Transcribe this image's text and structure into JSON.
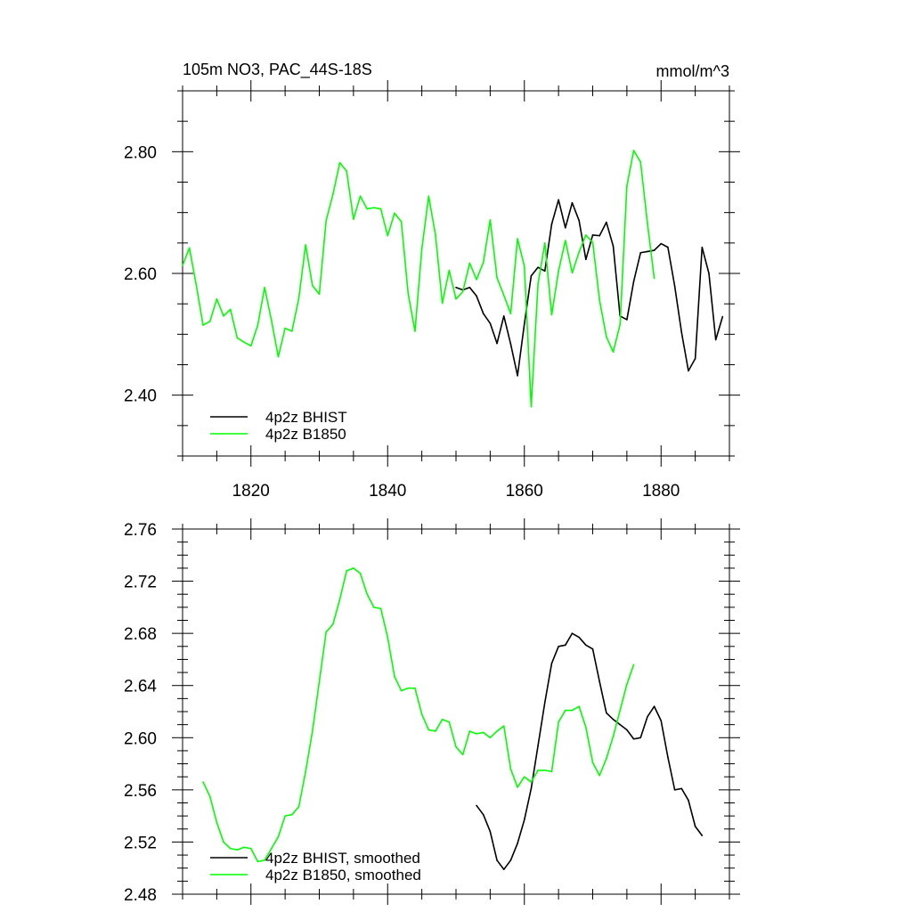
{
  "header": {
    "title": "105m NO3, PAC_44S-18S",
    "units": "mmol/m^3"
  },
  "chart_data": [
    {
      "type": "line",
      "title": "105m NO3, PAC_44S-18S",
      "units": "mmol/m^3",
      "xlim": [
        1810,
        1890
      ],
      "ylim": [
        2.3,
        2.9
      ],
      "x_ticks": [
        1820,
        1840,
        1860,
        1880
      ],
      "x_tick_labels": [
        "1820",
        "1840",
        "1860",
        "1880"
      ],
      "y_ticks": [
        2.4,
        2.6,
        2.8
      ],
      "y_tick_labels": [
        "2.40",
        "2.60",
        "2.80"
      ],
      "legend_placement": "lower-left",
      "grid": false,
      "series": [
        {
          "name": "4p2z BHIST",
          "color": "#000000",
          "x": [
            1850,
            1851,
            1852,
            1853,
            1854,
            1855,
            1856,
            1857,
            1858,
            1859,
            1860,
            1861,
            1862,
            1863,
            1864,
            1865,
            1866,
            1867,
            1868,
            1869,
            1870,
            1871,
            1872,
            1873,
            1874,
            1875,
            1876,
            1877,
            1878,
            1879,
            1880,
            1881,
            1882,
            1883,
            1884,
            1885,
            1886,
            1887,
            1888,
            1889
          ],
          "y": [
            2.577,
            2.573,
            2.577,
            2.563,
            2.534,
            2.518,
            2.485,
            2.53,
            2.484,
            2.432,
            2.517,
            2.596,
            2.61,
            2.604,
            2.681,
            2.721,
            2.675,
            2.716,
            2.687,
            2.623,
            2.663,
            2.662,
            2.684,
            2.645,
            2.53,
            2.524,
            2.587,
            2.634,
            2.636,
            2.638,
            2.649,
            2.643,
            2.579,
            2.503,
            2.44,
            2.46,
            2.643,
            2.6,
            2.491,
            2.529
          ]
        },
        {
          "name": "4p2z B1850",
          "color": "#00ff00",
          "x": [
            1810,
            1811,
            1812,
            1813,
            1814,
            1815,
            1816,
            1817,
            1818,
            1819,
            1820,
            1821,
            1822,
            1823,
            1824,
            1825,
            1826,
            1827,
            1828,
            1829,
            1830,
            1831,
            1832,
            1833,
            1834,
            1835,
            1836,
            1837,
            1838,
            1839,
            1840,
            1841,
            1842,
            1843,
            1844,
            1845,
            1846,
            1847,
            1848,
            1849,
            1850,
            1851,
            1852,
            1853,
            1854,
            1855,
            1856,
            1857,
            1858,
            1859,
            1860,
            1861,
            1862,
            1863,
            1864,
            1865,
            1866,
            1867,
            1868,
            1869,
            1870,
            1871,
            1872,
            1873,
            1874,
            1875,
            1876,
            1877,
            1878,
            1879
          ],
          "y": [
            2.613,
            2.642,
            2.581,
            2.515,
            2.521,
            2.558,
            2.53,
            2.541,
            2.494,
            2.487,
            2.481,
            2.515,
            2.577,
            2.523,
            2.463,
            2.51,
            2.505,
            2.559,
            2.647,
            2.58,
            2.566,
            2.687,
            2.73,
            2.782,
            2.768,
            2.689,
            2.727,
            2.706,
            2.708,
            2.706,
            2.662,
            2.699,
            2.685,
            2.567,
            2.505,
            2.64,
            2.727,
            2.663,
            2.551,
            2.605,
            2.558,
            2.57,
            2.617,
            2.59,
            2.618,
            2.688,
            2.593,
            2.564,
            2.534,
            2.657,
            2.612,
            2.381,
            2.583,
            2.65,
            2.532,
            2.604,
            2.654,
            2.601,
            2.635,
            2.663,
            2.651,
            2.556,
            2.496,
            2.471,
            2.516,
            2.744,
            2.802,
            2.783,
            2.683,
            2.592
          ]
        }
      ]
    },
    {
      "type": "line",
      "xlim": [
        1810,
        1890
      ],
      "ylim": [
        2.48,
        2.76
      ],
      "x_ticks": [
        1820,
        1840,
        1860,
        1880
      ],
      "y_ticks": [
        2.48,
        2.52,
        2.56,
        2.6,
        2.64,
        2.68,
        2.72,
        2.76
      ],
      "y_tick_labels": [
        "2.48",
        "2.52",
        "2.56",
        "2.60",
        "2.64",
        "2.68",
        "2.72",
        "2.76"
      ],
      "legend_placement": "lower-left",
      "grid": false,
      "series": [
        {
          "name": "4p2z BHIST, smoothed",
          "color": "#000000",
          "x": [
            1853,
            1854,
            1855,
            1856,
            1857,
            1858,
            1859,
            1860,
            1861,
            1862,
            1863,
            1864,
            1865,
            1866,
            1867,
            1868,
            1869,
            1870,
            1871,
            1872,
            1873,
            1874,
            1875,
            1876,
            1877,
            1878,
            1879,
            1880,
            1881,
            1882,
            1883,
            1884,
            1885,
            1886
          ],
          "y": [
            2.548,
            2.541,
            2.528,
            2.506,
            2.499,
            2.506,
            2.519,
            2.537,
            2.561,
            2.594,
            2.627,
            2.657,
            2.67,
            2.671,
            2.68,
            2.677,
            2.671,
            2.668,
            2.643,
            2.619,
            2.614,
            2.61,
            2.606,
            2.599,
            2.6,
            2.616,
            2.624,
            2.613,
            2.585,
            2.56,
            2.561,
            2.552,
            2.532,
            2.525
          ]
        },
        {
          "name": "4p2z B1850, smoothed",
          "color": "#00ff00",
          "x": [
            1813,
            1814,
            1815,
            1816,
            1817,
            1818,
            1819,
            1820,
            1821,
            1822,
            1823,
            1824,
            1825,
            1826,
            1827,
            1828,
            1829,
            1830,
            1831,
            1832,
            1833,
            1834,
            1835,
            1836,
            1837,
            1838,
            1839,
            1840,
            1841,
            1842,
            1843,
            1844,
            1845,
            1846,
            1847,
            1848,
            1849,
            1850,
            1851,
            1852,
            1853,
            1854,
            1855,
            1856,
            1857,
            1858,
            1859,
            1860,
            1861,
            1862,
            1863,
            1864,
            1865,
            1866,
            1867,
            1868,
            1869,
            1870,
            1871,
            1872,
            1873,
            1874,
            1875,
            1876
          ],
          "y": [
            2.566,
            2.555,
            2.535,
            2.52,
            2.515,
            2.514,
            2.516,
            2.515,
            2.505,
            2.506,
            2.515,
            2.524,
            2.54,
            2.541,
            2.547,
            2.574,
            2.605,
            2.643,
            2.681,
            2.687,
            2.706,
            2.728,
            2.73,
            2.726,
            2.71,
            2.7,
            2.699,
            2.677,
            2.647,
            2.636,
            2.638,
            2.638,
            2.618,
            2.606,
            2.605,
            2.614,
            2.612,
            2.593,
            2.587,
            2.605,
            2.603,
            2.604,
            2.6,
            2.605,
            2.609,
            2.576,
            2.562,
            2.57,
            2.566,
            2.575,
            2.575,
            2.574,
            2.612,
            2.621,
            2.621,
            2.624,
            2.608,
            2.581,
            2.571,
            2.584,
            2.601,
            2.621,
            2.641,
            2.656
          ]
        }
      ]
    }
  ]
}
